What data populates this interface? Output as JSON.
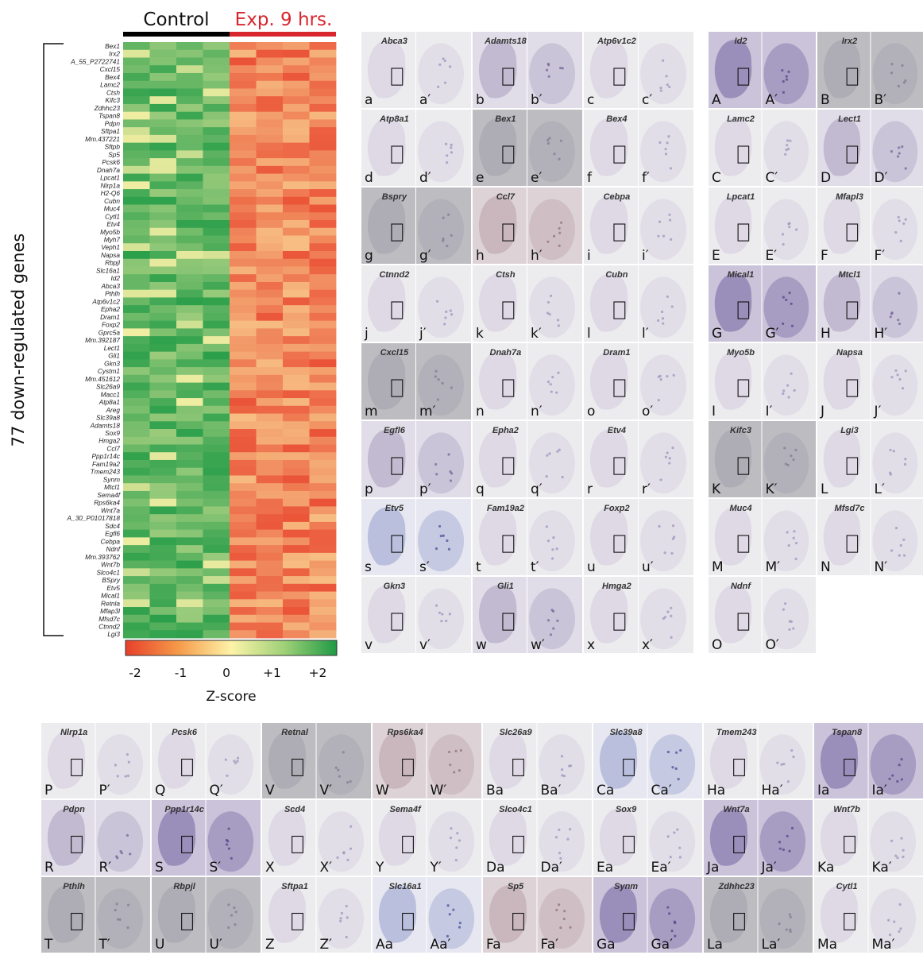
{
  "heatmap": {
    "header_control": "Control",
    "header_exp": "Exp. 9 hrs.",
    "y_title": "77 down-regulated genes",
    "colorbar_title": "Z-score",
    "colorbar_ticks": [
      "-2",
      "-1",
      "0",
      "+1",
      "+2"
    ],
    "colors": {
      "low": "#e8402a",
      "mid": "#fdf3a8",
      "high": "#1f9a45",
      "control_bar": "#000000",
      "exp_bar": "#d7262e"
    },
    "columns": 8,
    "genes": [
      "Bex1",
      "Irx2",
      "A_55_P2722741",
      "Cxcl15",
      "Bex4",
      "Lamc2",
      "Ctsh",
      "Kifc3",
      "Zdhhc23",
      "Tspan8",
      "Pdpn",
      "Sftpa1",
      "Mm.437221",
      "Sftpb",
      "Sp5",
      "Pcsk6",
      "Dnah7a",
      "Lpcat1",
      "Nlrp1a",
      "H2-Q6",
      "Cubn",
      "Muc4",
      "Cytl1",
      "Etv4",
      "Myo5b",
      "Myh7",
      "Veph1",
      "Napsa",
      "Rbpjl",
      "Slc16a1",
      "Id2",
      "Abca3",
      "Pthlh",
      "Atp6v1c2",
      "Epha2",
      "Dram1",
      "Foxp2",
      "Gprc5a",
      "Mm.392187",
      "Lect1",
      "Gli1",
      "Gkn3",
      "Cystm1",
      "Mm.451612",
      "Slc26a9",
      "Macc1",
      "Atp8a1",
      "Areg",
      "Slc39a8",
      "Adamts18",
      "Sox9",
      "Hmga2",
      "Ccl7",
      "Ppp1r14c",
      "Fam19a2",
      "Tmem243",
      "Synm",
      "Mtcl1",
      "Sema4f",
      "Rps6ka4",
      "Wnt7a",
      "A_30_P01017818",
      "Sdc4",
      "Egfl6",
      "Cebpa",
      "Ndnf",
      "Mm.393762",
      "Wnt7b",
      "Slco4c1",
      "BSpry",
      "Etv5",
      "Mical1",
      "Retnla",
      "Mfap3l",
      "Mfsd7c",
      "Ctnnd2",
      "Lgi3"
    ]
  },
  "panels_mid": [
    {
      "gene": "Abca3",
      "letter": "a",
      "letter2": "a′",
      "tone": "light"
    },
    {
      "gene": "Adamts18",
      "letter": "b",
      "letter2": "b′",
      "tone": "mid"
    },
    {
      "gene": "Atp6v1c2",
      "letter": "c",
      "letter2": "c′",
      "tone": "light"
    },
    {
      "gene": "Atp8a1",
      "letter": "d",
      "letter2": "d′",
      "tone": "light"
    },
    {
      "gene": "Bex1",
      "letter": "e",
      "letter2": "e′",
      "tone": "gray"
    },
    {
      "gene": "Bex4",
      "letter": "f",
      "letter2": "f′",
      "tone": "light"
    },
    {
      "gene": "Bspry",
      "letter": "g",
      "letter2": "g′",
      "tone": "gray"
    },
    {
      "gene": "Ccl7",
      "letter": "h",
      "letter2": "h′",
      "tone": "pink"
    },
    {
      "gene": "Cebpa",
      "letter": "i",
      "letter2": "i′",
      "tone": "light"
    },
    {
      "gene": "Ctnnd2",
      "letter": "j",
      "letter2": "j′",
      "tone": "light"
    },
    {
      "gene": "Ctsh",
      "letter": "k",
      "letter2": "k′",
      "tone": "light"
    },
    {
      "gene": "Cubn",
      "letter": "l",
      "letter2": "l′",
      "tone": "light"
    },
    {
      "gene": "Cxcl15",
      "letter": "m",
      "letter2": "m′",
      "tone": "gray"
    },
    {
      "gene": "Dnah7a",
      "letter": "n",
      "letter2": "n′",
      "tone": "light"
    },
    {
      "gene": "Dram1",
      "letter": "o",
      "letter2": "o′",
      "tone": "light"
    },
    {
      "gene": "Egfl6",
      "letter": "p",
      "letter2": "p′",
      "tone": "mid"
    },
    {
      "gene": "Epha2",
      "letter": "q",
      "letter2": "q′",
      "tone": "light"
    },
    {
      "gene": "Etv4",
      "letter": "r",
      "letter2": "r′",
      "tone": "light"
    },
    {
      "gene": "Etv5",
      "letter": "s",
      "letter2": "s′",
      "tone": "blue"
    },
    {
      "gene": "Fam19a2",
      "letter": "t",
      "letter2": "t′",
      "tone": "light"
    },
    {
      "gene": "Foxp2",
      "letter": "u",
      "letter2": "u′",
      "tone": "light"
    },
    {
      "gene": "Gkn3",
      "letter": "v",
      "letter2": "v′",
      "tone": "light"
    },
    {
      "gene": "Gli1",
      "letter": "w",
      "letter2": "w′",
      "tone": "mid"
    },
    {
      "gene": "Hmga2",
      "letter": "x",
      "letter2": "x′",
      "tone": "light"
    }
  ],
  "panels_right": [
    {
      "gene": "Id2",
      "letter": "A",
      "letter2": "A′",
      "tone": "dark"
    },
    {
      "gene": "Irx2",
      "letter": "B",
      "letter2": "B′",
      "tone": "gray"
    },
    {
      "gene": "Lamc2",
      "letter": "C",
      "letter2": "C′",
      "tone": "light"
    },
    {
      "gene": "Lect1",
      "letter": "D",
      "letter2": "D′",
      "tone": "mid"
    },
    {
      "gene": "Lpcat1",
      "letter": "E",
      "letter2": "E′",
      "tone": "light"
    },
    {
      "gene": "Mfapl3",
      "letter": "F",
      "letter2": "F′",
      "tone": "light"
    },
    {
      "gene": "Mical1",
      "letter": "G",
      "letter2": "G′",
      "tone": "dark"
    },
    {
      "gene": "Mtcl1",
      "letter": "H",
      "letter2": "H′",
      "tone": "mid"
    },
    {
      "gene": "Myo5b",
      "letter": "I",
      "letter2": "I′",
      "tone": "light"
    },
    {
      "gene": "Napsa",
      "letter": "J",
      "letter2": "J′",
      "tone": "light"
    },
    {
      "gene": "Kifc3",
      "letter": "K",
      "letter2": "K′",
      "tone": "gray"
    },
    {
      "gene": "Lgi3",
      "letter": "L",
      "letter2": "L′",
      "tone": "light"
    },
    {
      "gene": "Muc4",
      "letter": "M",
      "letter2": "M′",
      "tone": "light"
    },
    {
      "gene": "Mfsd7c",
      "letter": "N",
      "letter2": "N′",
      "tone": "light"
    },
    {
      "gene": "Ndnf",
      "letter": "O",
      "letter2": "O′",
      "tone": "light"
    }
  ],
  "panels_bottom": [
    {
      "gene": "Nlrp1a",
      "letter": "P",
      "letter2": "P′",
      "tone": "light"
    },
    {
      "gene": "Pcsk6",
      "letter": "Q",
      "letter2": "Q′",
      "tone": "light"
    },
    {
      "gene": "Retnal",
      "letter": "V",
      "letter2": "V′",
      "tone": "gray"
    },
    {
      "gene": "Rps6ka4",
      "letter": "W",
      "letter2": "W′",
      "tone": "pink"
    },
    {
      "gene": "Slc26a9",
      "letter": "Ba",
      "letter2": "Ba′",
      "tone": "light"
    },
    {
      "gene": "Slc39a8",
      "letter": "Ca",
      "letter2": "Ca′",
      "tone": "blue"
    },
    {
      "gene": "Tmem243",
      "letter": "Ha",
      "letter2": "Ha′",
      "tone": "light"
    },
    {
      "gene": "Tspan8",
      "letter": "Ia",
      "letter2": "Ia′",
      "tone": "dark"
    },
    {
      "gene": "Pdpn",
      "letter": "R",
      "letter2": "R′",
      "tone": "mid"
    },
    {
      "gene": "Ppp1r14c",
      "letter": "S",
      "letter2": "S′",
      "tone": "dark"
    },
    {
      "gene": "Scd4",
      "letter": "X",
      "letter2": "X′",
      "tone": "light"
    },
    {
      "gene": "Sema4f",
      "letter": "Y",
      "letter2": "Y′",
      "tone": "light"
    },
    {
      "gene": "Slco4c1",
      "letter": "Da",
      "letter2": "Da′",
      "tone": "light"
    },
    {
      "gene": "Sox9",
      "letter": "Ea",
      "letter2": "Ea′",
      "tone": "light"
    },
    {
      "gene": "Wnt7a",
      "letter": "Ja",
      "letter2": "Ja′",
      "tone": "dark"
    },
    {
      "gene": "Wnt7b",
      "letter": "Ka",
      "letter2": "Ka′",
      "tone": "light"
    },
    {
      "gene": "Pthlh",
      "letter": "T",
      "letter2": "T′",
      "tone": "gray"
    },
    {
      "gene": "Rbpjl",
      "letter": "U",
      "letter2": "U′",
      "tone": "gray"
    },
    {
      "gene": "Sftpa1",
      "letter": "Z",
      "letter2": "Z′",
      "tone": "light"
    },
    {
      "gene": "Slc16a1",
      "letter": "Aa",
      "letter2": "Aa′",
      "tone": "blue"
    },
    {
      "gene": "Sp5",
      "letter": "Fa",
      "letter2": "Fa′",
      "tone": "pink"
    },
    {
      "gene": "Synm",
      "letter": "Ga",
      "letter2": "Ga′",
      "tone": "dark"
    },
    {
      "gene": "Zdhhc23",
      "letter": "La",
      "letter2": "La′",
      "tone": "gray"
    },
    {
      "gene": "Cytl1",
      "letter": "Ma",
      "letter2": "Ma′",
      "tone": "light"
    }
  ]
}
